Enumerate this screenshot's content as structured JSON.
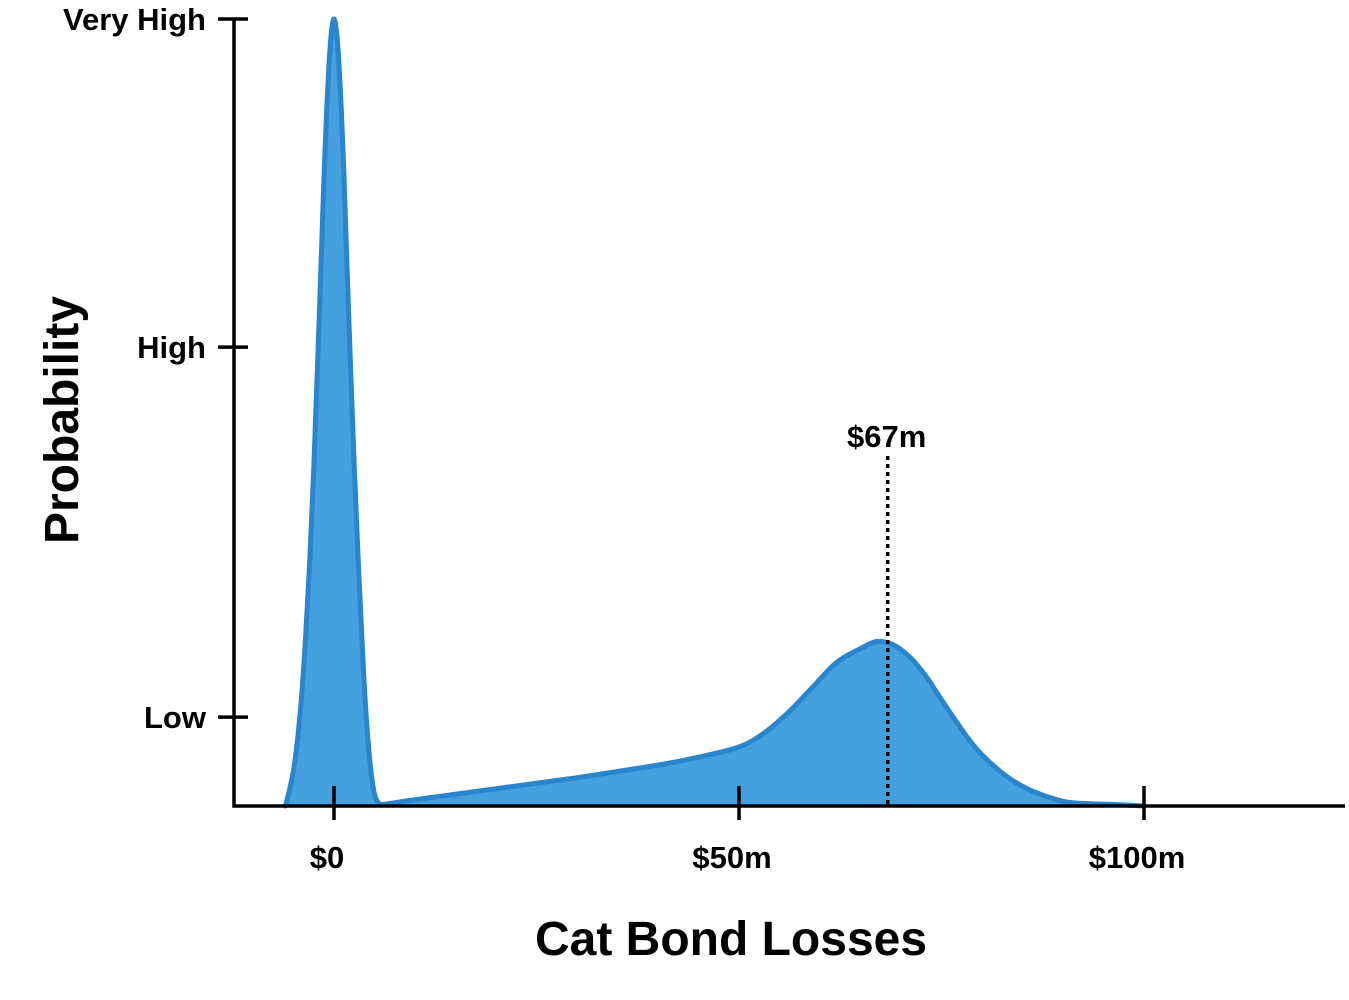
{
  "chart_data": {
    "type": "area",
    "title": "",
    "xlabel": "Cat Bond Losses",
    "ylabel": "Probability",
    "xlim": [
      -12.5,
      125
    ],
    "ylim": [
      0,
      1
    ],
    "x_ticks": [
      {
        "value": 0,
        "label": "$0"
      },
      {
        "value": 50,
        "label": "$50m"
      },
      {
        "value": 100,
        "label": "$100m"
      }
    ],
    "y_ticks": [
      {
        "value": 0.113,
        "label": "Low"
      },
      {
        "value": 0.583,
        "label": "High"
      },
      {
        "value": 1.0,
        "label": "Very High"
      }
    ],
    "series": [
      {
        "x": [
          -6,
          -5.5,
          -5,
          -4.5,
          -4,
          -3.5,
          -3,
          -2.5,
          -2,
          -1.5,
          -1.2,
          -0.9,
          -0.6,
          -0.3,
          0,
          0.3,
          0.6,
          0.9,
          1.2,
          1.5,
          2,
          2.5,
          3,
          3.5,
          4,
          4.5,
          5,
          5.5,
          6,
          10,
          20,
          30,
          40,
          45,
          50,
          53,
          56,
          59,
          62,
          65,
          67,
          69,
          71,
          73,
          75,
          78,
          80,
          83,
          86,
          90,
          93,
          96,
          100
        ],
        "y": [
          0,
          0.02,
          0.045,
          0.085,
          0.14,
          0.215,
          0.31,
          0.43,
          0.57,
          0.72,
          0.81,
          0.885,
          0.945,
          0.985,
          1.0,
          0.985,
          0.945,
          0.885,
          0.81,
          0.72,
          0.57,
          0.43,
          0.31,
          0.2,
          0.11,
          0.05,
          0.015,
          0.004,
          0.002,
          0.008,
          0.022,
          0.036,
          0.052,
          0.062,
          0.075,
          0.092,
          0.118,
          0.15,
          0.182,
          0.2,
          0.209,
          0.205,
          0.19,
          0.166,
          0.135,
          0.09,
          0.065,
          0.038,
          0.02,
          0.006,
          0.003,
          0.002,
          0.0
        ]
      }
    ],
    "annotations": [
      {
        "x": 67,
        "label": "$67m",
        "style": "dotted vertical line"
      }
    ],
    "grid": false,
    "legend": "none",
    "colors": {
      "fill": "#44a0df",
      "stroke": "#2a85cf",
      "axis": "#000000"
    }
  }
}
